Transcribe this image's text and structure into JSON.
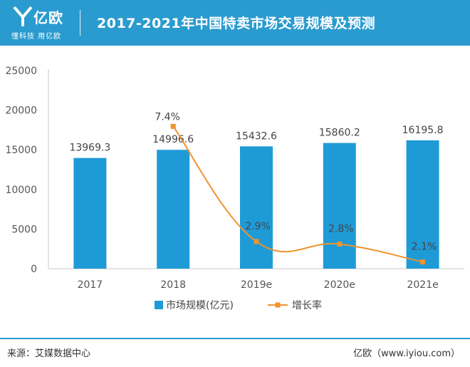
{
  "header": {
    "logo_text": "亿欧",
    "slogan": "懂科技 用亿欧",
    "title": "2017-2021年中国特卖市场交易规模及预测"
  },
  "footer": {
    "source": "来源：艾媒数据中心",
    "brand": "亿欧（www.iyiou.com）"
  },
  "colors": {
    "header_bg": "#2a9bcf",
    "bar": "#1e9bd7",
    "line": "#f0922e",
    "axis_text": "#555555"
  },
  "chart_data": {
    "type": "bar",
    "categories": [
      "2017",
      "2018",
      "2019e",
      "2020e",
      "2021e"
    ],
    "ylim": [
      0,
      25000
    ],
    "yticks": [
      0,
      5000,
      10000,
      15000,
      20000,
      25000
    ],
    "series": [
      {
        "name": "市场规模(亿元)",
        "type": "bar",
        "values": [
          13969.3,
          14996.6,
          15432.6,
          15860.2,
          16195.8
        ],
        "labels": [
          "13969.3",
          "14996.6",
          "15432.6",
          "15860.2",
          "16195.8"
        ]
      },
      {
        "name": "增长率",
        "type": "line",
        "values": [
          null,
          7.4,
          2.9,
          2.8,
          2.1
        ],
        "labels": [
          "",
          "7.4%",
          "2.9%",
          "2.8%",
          "2.1%"
        ]
      }
    ],
    "legend_position": "bottom-center",
    "grid": false
  }
}
